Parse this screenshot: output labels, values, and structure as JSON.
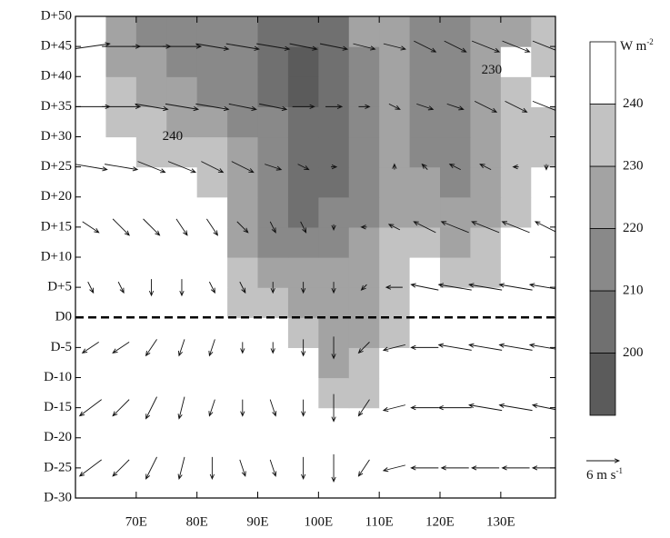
{
  "chart_data": {
    "type": "contour",
    "x": [
      62.5,
      67.5,
      72.5,
      77.5,
      82.5,
      87.5,
      92.5,
      97.5,
      102.5,
      107.5,
      112.5,
      117.5,
      122.5,
      127.5,
      132.5,
      137.5
    ],
    "y": [
      -27.5,
      -22.5,
      -17.5,
      -12.5,
      -7.5,
      -2.5,
      2.5,
      7.5,
      12.5,
      17.5,
      22.5,
      27.5,
      32.5,
      37.5,
      42.5,
      47.5
    ],
    "z": [
      [
        250,
        250,
        250,
        250,
        250,
        250,
        250,
        250,
        250,
        250,
        250,
        250,
        250,
        250,
        250,
        250
      ],
      [
        250,
        250,
        250,
        250,
        250,
        250,
        250,
        250,
        250,
        250,
        250,
        250,
        250,
        250,
        250,
        250
      ],
      [
        250,
        250,
        250,
        250,
        250,
        250,
        250,
        250,
        250,
        250,
        250,
        250,
        250,
        250,
        250,
        250
      ],
      [
        250,
        250,
        250,
        250,
        250,
        250,
        250,
        250,
        235,
        235,
        250,
        250,
        250,
        250,
        250,
        250
      ],
      [
        250,
        250,
        250,
        250,
        250,
        250,
        250,
        250,
        225,
        235,
        250,
        250,
        250,
        250,
        250,
        250
      ],
      [
        250,
        250,
        250,
        250,
        250,
        250,
        250,
        235,
        225,
        225,
        235,
        250,
        250,
        250,
        250,
        250
      ],
      [
        250,
        250,
        250,
        250,
        250,
        235,
        235,
        225,
        225,
        225,
        235,
        250,
        250,
        250,
        250,
        250
      ],
      [
        250,
        250,
        250,
        250,
        250,
        235,
        225,
        225,
        225,
        225,
        235,
        250,
        235,
        235,
        250,
        250
      ],
      [
        250,
        250,
        250,
        250,
        250,
        225,
        215,
        215,
        215,
        225,
        235,
        235,
        225,
        235,
        250,
        250
      ],
      [
        250,
        250,
        250,
        250,
        250,
        225,
        215,
        205,
        215,
        215,
        225,
        225,
        225,
        225,
        235,
        250
      ],
      [
        250,
        250,
        250,
        250,
        235,
        225,
        215,
        205,
        205,
        215,
        225,
        225,
        215,
        225,
        235,
        250
      ],
      [
        250,
        250,
        235,
        235,
        235,
        225,
        215,
        205,
        205,
        215,
        225,
        215,
        215,
        225,
        235,
        235
      ],
      [
        250,
        235,
        235,
        225,
        225,
        215,
        215,
        205,
        205,
        215,
        225,
        215,
        215,
        225,
        235,
        235
      ],
      [
        250,
        235,
        225,
        225,
        215,
        215,
        205,
        195,
        205,
        215,
        225,
        215,
        215,
        225,
        235,
        250
      ],
      [
        250,
        225,
        225,
        215,
        215,
        215,
        205,
        195,
        205,
        215,
        225,
        215,
        215,
        225,
        250,
        235
      ],
      [
        250,
        225,
        215,
        215,
        215,
        215,
        205,
        205,
        205,
        225,
        225,
        215,
        215,
        225,
        225,
        235
      ]
    ],
    "levels": [
      200,
      210,
      220,
      230,
      240
    ],
    "colors": [
      "#5b5b5b",
      "#707070",
      "#898989",
      "#a3a3a3",
      "#c2c2c2",
      "#ffffff"
    ],
    "vector_y": [
      -25,
      -15,
      -5,
      5,
      15,
      25,
      35,
      45
    ],
    "u": [
      [
        -4,
        -3,
        -2,
        -1,
        0,
        1,
        1,
        0,
        0,
        -2,
        -4,
        -5,
        -5,
        -5,
        -5,
        -5
      ],
      [
        -4,
        -3,
        -2,
        -1,
        -1,
        0,
        1,
        0,
        0,
        -2,
        -4,
        -5,
        -6,
        -6,
        -6,
        -5
      ],
      [
        -3,
        -3,
        -2,
        -1,
        -1,
        0,
        0,
        0,
        0,
        -2,
        -4,
        -5,
        -6,
        -6,
        -6,
        -6
      ],
      [
        1,
        1,
        0,
        0,
        1,
        1,
        0,
        0,
        0,
        -1,
        -3,
        -5,
        -6,
        -6,
        -6,
        -6
      ],
      [
        3,
        3,
        3,
        2,
        2,
        2,
        1,
        1,
        0,
        -1,
        -2,
        -4,
        -5,
        -5,
        -5,
        -4
      ],
      [
        6,
        6,
        5,
        5,
        4,
        4,
        3,
        2,
        1,
        0,
        0,
        -1,
        -2,
        -2,
        -1,
        0
      ],
      [
        7,
        7,
        6,
        6,
        6,
        5,
        5,
        4,
        3,
        2,
        2,
        3,
        3,
        4,
        4,
        5
      ],
      [
        7,
        7,
        7,
        7,
        6,
        6,
        6,
        5,
        5,
        4,
        4,
        4,
        4,
        5,
        5,
        5
      ]
    ],
    "v": [
      [
        -3,
        -3,
        -4,
        -4,
        -4,
        -3,
        -3,
        -4,
        -5,
        -3,
        -1,
        0,
        0,
        0,
        0,
        0
      ],
      [
        -3,
        -3,
        -4,
        -4,
        -3,
        -3,
        -3,
        -3,
        -5,
        -3,
        -1,
        0,
        0,
        1,
        1,
        1
      ],
      [
        -2,
        -2,
        -3,
        -3,
        -3,
        -2,
        -2,
        -3,
        -4,
        -2,
        -1,
        0,
        1,
        1,
        1,
        1
      ],
      [
        -2,
        -2,
        -3,
        -3,
        -2,
        -2,
        -2,
        -2,
        -2,
        -1,
        0,
        1,
        1,
        1,
        1,
        1
      ],
      [
        -2,
        -3,
        -3,
        -3,
        -3,
        -2,
        -2,
        -2,
        -1,
        0,
        1,
        2,
        2,
        2,
        2,
        2
      ],
      [
        -1,
        -1,
        -2,
        -2,
        -2,
        -2,
        -1,
        -1,
        0,
        0,
        1,
        1,
        1,
        1,
        0,
        -1
      ],
      [
        0,
        0,
        -1,
        -1,
        -1,
        -1,
        -1,
        0,
        0,
        0,
        -1,
        -1,
        -1,
        -2,
        -2,
        -2
      ],
      [
        1,
        0,
        0,
        0,
        -1,
        -1,
        -1,
        -1,
        -1,
        -1,
        -1,
        -2,
        -2,
        -2,
        -2,
        -2
      ]
    ],
    "vector_ref": {
      "value": 6,
      "label": "6 m s",
      "superscript": "-1"
    },
    "colorbar_unit": {
      "text": "W m",
      "superscript": "-2"
    },
    "reference_line": 0,
    "annotations": [
      {
        "text": "240",
        "x": 76,
        "y": 30
      },
      {
        "text": "230",
        "x": 128.5,
        "y": 41
      }
    ],
    "xlim": [
      60,
      139
    ],
    "ylim": [
      -30,
      50
    ],
    "xticks": [
      {
        "value": 70,
        "label": "70E"
      },
      {
        "value": 80,
        "label": "80E"
      },
      {
        "value": 90,
        "label": "90E"
      },
      {
        "value": 100,
        "label": "100E"
      },
      {
        "value": 110,
        "label": "110E"
      },
      {
        "value": 120,
        "label": "120E"
      },
      {
        "value": 130,
        "label": "130E"
      }
    ],
    "yticks": [
      {
        "value": -30,
        "label": "D-30"
      },
      {
        "value": -25,
        "label": "D-25"
      },
      {
        "value": -20,
        "label": "D-20"
      },
      {
        "value": -15,
        "label": "D-15"
      },
      {
        "value": -10,
        "label": "D-10"
      },
      {
        "value": -5,
        "label": "D-5"
      },
      {
        "value": 0,
        "label": "D0"
      },
      {
        "value": 5,
        "label": "D+5"
      },
      {
        "value": 10,
        "label": "D+10"
      },
      {
        "value": 15,
        "label": "D+15"
      },
      {
        "value": 20,
        "label": "D+20"
      },
      {
        "value": 25,
        "label": "D+25"
      },
      {
        "value": 30,
        "label": "D+30"
      },
      {
        "value": 35,
        "label": "D+35"
      },
      {
        "value": 40,
        "label": "D+40"
      },
      {
        "value": 45,
        "label": "D+45"
      },
      {
        "value": 50,
        "label": "D+50"
      }
    ]
  }
}
